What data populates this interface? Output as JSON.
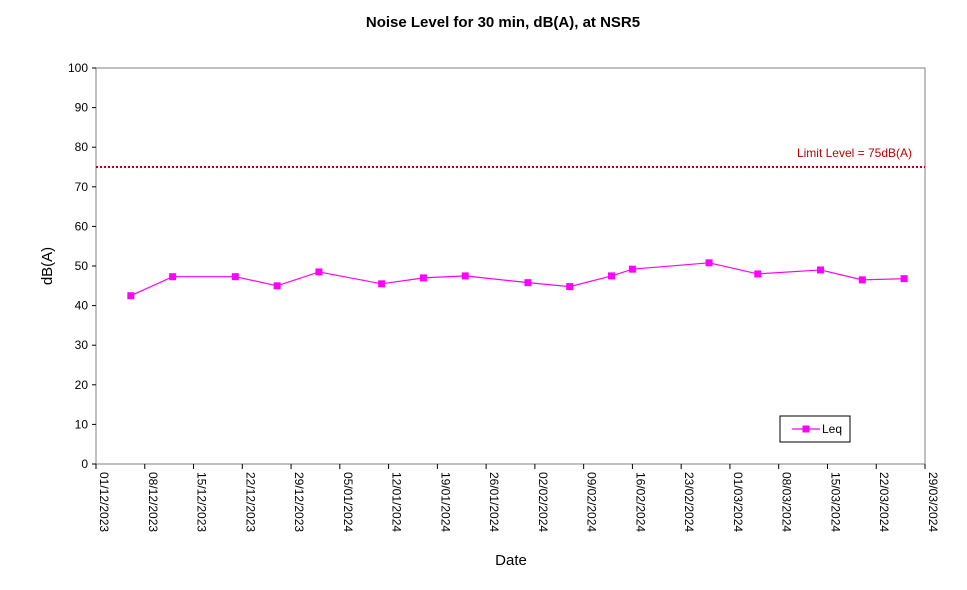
{
  "chart_data": {
    "type": "line",
    "title": "Noise Level for 30 min, dB(A), at NSR5",
    "xlabel": "Date",
    "ylabel": "dB(A)",
    "ylim": [
      0,
      100
    ],
    "yticks": [
      0,
      10,
      20,
      30,
      40,
      50,
      60,
      70,
      80,
      90,
      100
    ],
    "xlim": [
      "2023-12-01",
      "2024-03-29"
    ],
    "xtick_labels": [
      "01/12/2023",
      "08/12/2023",
      "15/12/2023",
      "22/12/2023",
      "29/12/2023",
      "05/01/2024",
      "12/01/2024",
      "19/01/2024",
      "26/01/2024",
      "02/02/2024",
      "09/02/2024",
      "16/02/2024",
      "23/02/2024",
      "01/03/2024",
      "08/03/2024",
      "15/03/2024",
      "22/03/2024",
      "29/03/2024"
    ],
    "grid": false,
    "legend_position": "bottom-right",
    "series": [
      {
        "name": "Leq",
        "color": "#ff00ff",
        "marker": "square",
        "x": [
          "2023-12-06",
          "2023-12-12",
          "2023-12-21",
          "2023-12-27",
          "2024-01-02",
          "2024-01-11",
          "2024-01-17",
          "2024-01-23",
          "2024-02-01",
          "2024-02-07",
          "2024-02-13",
          "2024-02-16",
          "2024-02-27",
          "2024-03-05",
          "2024-03-14",
          "2024-03-20",
          "2024-03-26"
        ],
        "y": [
          42.5,
          47.3,
          47.3,
          45.0,
          48.5,
          45.5,
          47.0,
          47.5,
          45.8,
          44.8,
          47.5,
          49.2,
          50.8,
          48.0,
          49.0,
          46.5,
          46.8
        ]
      }
    ],
    "reference_line": {
      "value": 75,
      "label": "Limit Level  = 75dB(A)",
      "color": "#c00000",
      "style": "dotted"
    }
  }
}
